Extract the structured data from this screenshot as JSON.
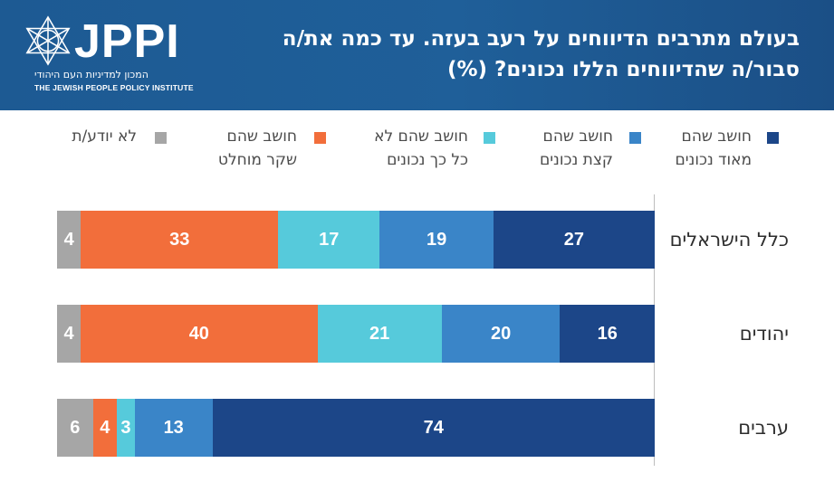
{
  "header": {
    "title": "בעולם מתרבים הדיווחים על רעב בעזה. עד כמה את/ה סבור/ה שהדיווחים הללו נכונים? (%)",
    "logo_text": "JPPI",
    "logo_hebrew": "המכון למדיניות העם היהודי",
    "logo_english": "THE JEWISH PEOPLE POLICY INSTITUTE"
  },
  "colors": {
    "header_bg": "#1f5f99",
    "very_true": "#1c4688",
    "somewhat_true": "#3a85c8",
    "not_so_true": "#56cadb",
    "false": "#f26e3b",
    "dont_know": "#a6a6a6"
  },
  "chart_data": {
    "type": "bar",
    "orientation": "horizontal",
    "stacked": true,
    "unit": "%",
    "xlim": [
      0,
      100
    ],
    "categories": [
      "כלל הישראלים",
      "יהודים",
      "ערבים"
    ],
    "series": [
      {
        "name": "חושב שהם מאוד נכונים",
        "color": "#1c4688",
        "values": [
          27,
          16,
          74
        ]
      },
      {
        "name": "חושב שהם קצת נכונים",
        "color": "#3a85c8",
        "values": [
          19,
          20,
          13
        ]
      },
      {
        "name": "חושב שהם לא כל כך נכונים",
        "color": "#56cadb",
        "values": [
          17,
          21,
          3
        ]
      },
      {
        "name": "חושב שהם שקר מוחלט",
        "color": "#f26e3b",
        "values": [
          33,
          40,
          4
        ]
      },
      {
        "name": "לא יודע/ת",
        "color": "#a6a6a6",
        "values": [
          4,
          4,
          6
        ]
      }
    ],
    "legend_labels": [
      [
        "חושב שהם",
        "מאוד נכונים"
      ],
      [
        "חושב שהם",
        "קצת נכונים"
      ],
      [
        "חושב שהם לא",
        "כל כך נכונים"
      ],
      [
        "חושב שהם",
        "שקר מוחלט"
      ],
      [
        "לא יודע/ת"
      ]
    ],
    "legend_position": "top",
    "grid": false
  }
}
